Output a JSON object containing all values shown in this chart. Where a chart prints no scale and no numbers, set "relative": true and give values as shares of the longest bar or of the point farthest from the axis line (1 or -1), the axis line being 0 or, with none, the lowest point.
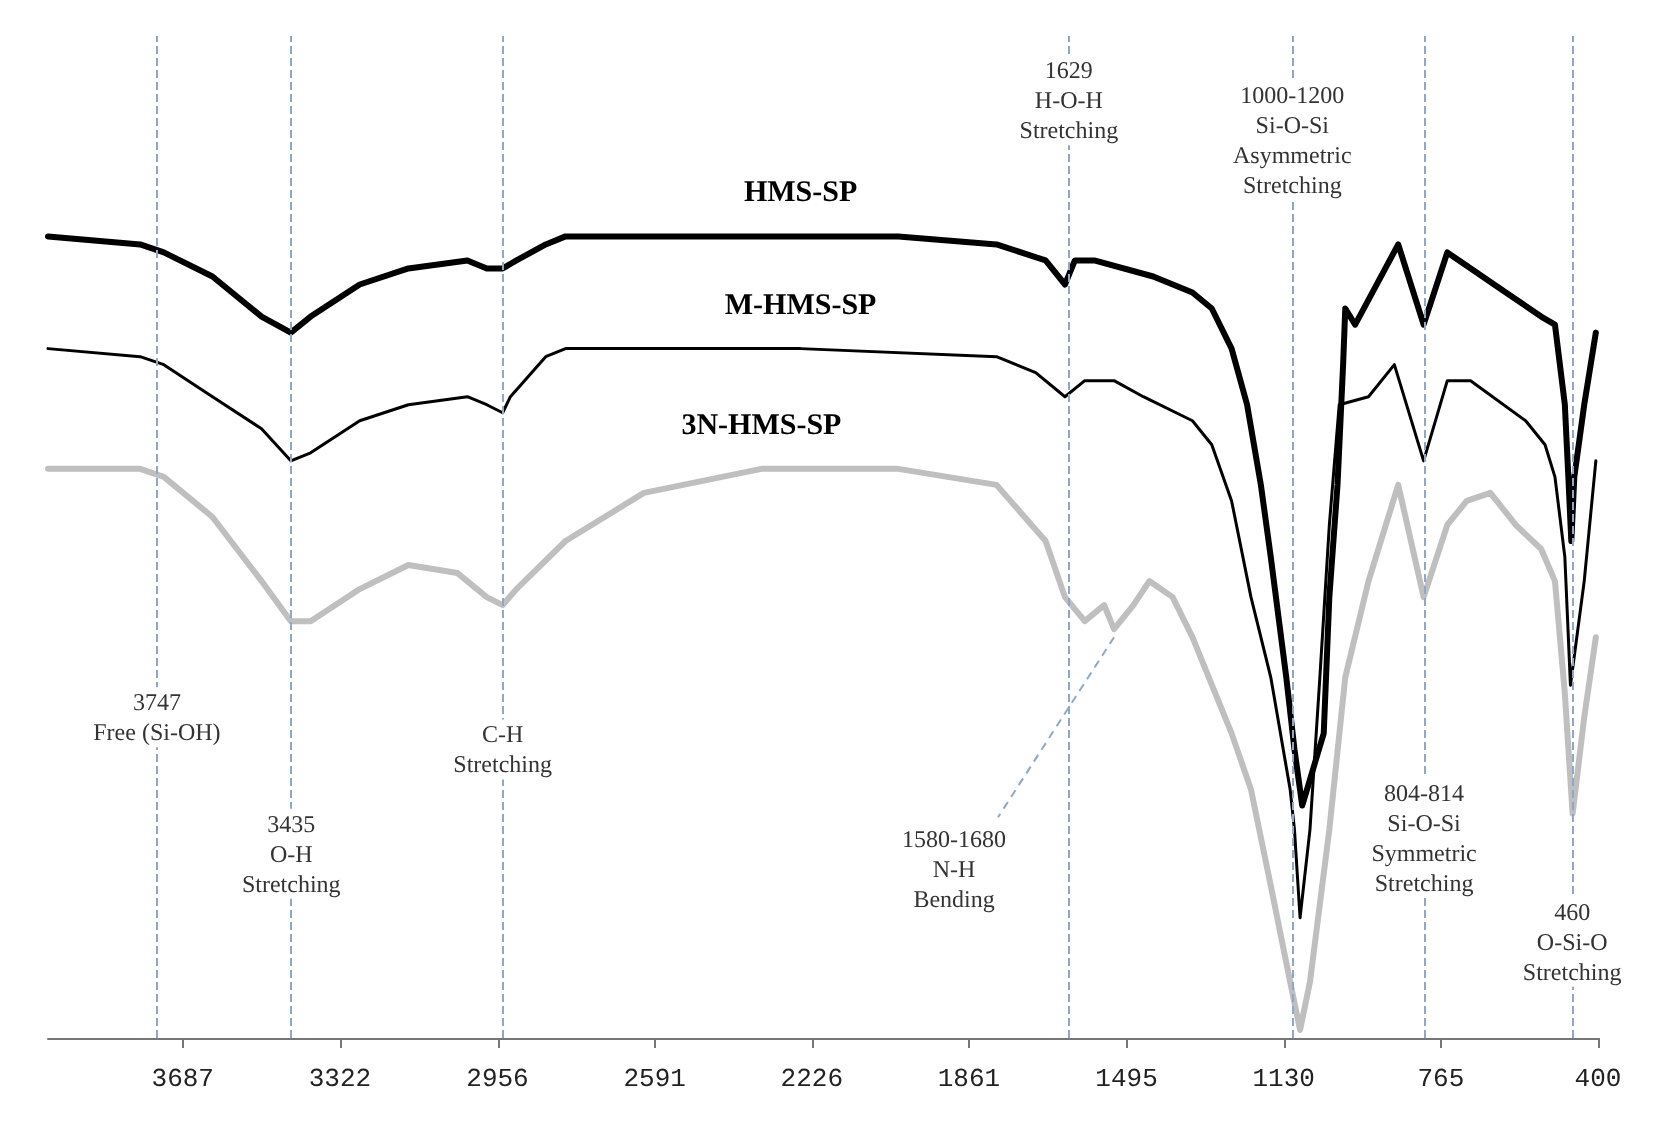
{
  "chart_data": {
    "type": "line",
    "relative": true,
    "xlim": [
      4000,
      400
    ],
    "xticks": [
      3687,
      3322,
      2956,
      2591,
      2226,
      1861,
      1495,
      1130,
      765,
      400
    ],
    "tick_labels": "x",
    "grid": false,
    "legend": false,
    "marker": "none",
    "line_style": "solid",
    "series": [
      {
        "name": "HMS-SP",
        "color": "#000000",
        "x": [
          4000,
          3786,
          3731,
          3618,
          3504,
          3436,
          3390,
          3276,
          3163,
          3026,
          2981,
          2944,
          2912,
          2844,
          2798,
          2252,
          2025,
          1797,
          1683,
          1638,
          1615,
          1570,
          1433,
          1342,
          1297,
          1251,
          1215,
          1183,
          1160,
          1124,
          1105,
          1087,
          1037,
          1024,
          1005,
          992,
          987,
          964,
          864,
          805,
          750,
          614,
          532,
          500,
          477,
          468,
          462,
          455,
          432,
          405
        ],
        "values": [
          1.0,
          0.99,
          0.98,
          0.95,
          0.9,
          0.88,
          0.9,
          0.94,
          0.96,
          0.97,
          0.96,
          0.96,
          0.97,
          0.99,
          1.0,
          1.0,
          1.0,
          0.99,
          0.97,
          0.94,
          0.97,
          0.97,
          0.95,
          0.93,
          0.91,
          0.86,
          0.79,
          0.69,
          0.6,
          0.45,
          0.36,
          0.29,
          0.38,
          0.55,
          0.69,
          0.84,
          0.91,
          0.89,
          0.99,
          0.89,
          0.98,
          0.93,
          0.9,
          0.89,
          0.79,
          0.69,
          0.62,
          0.7,
          0.79,
          0.88
        ]
      },
      {
        "name": "M-HMS-SP",
        "color": "#000000",
        "x": [
          4000,
          3786,
          3731,
          3618,
          3504,
          3436,
          3390,
          3276,
          3163,
          3026,
          2981,
          2944,
          2926,
          2844,
          2798,
          2252,
          1797,
          1706,
          1638,
          1592,
          1524,
          1456,
          1342,
          1297,
          1251,
          1206,
          1160,
          1115,
          1105,
          1092,
          1069,
          1046,
          1024,
          1001,
          933,
          873,
          805,
          750,
          696,
          568,
          523,
          500,
          477,
          464,
          432,
          405
        ],
        "values": [
          0.86,
          0.85,
          0.84,
          0.8,
          0.76,
          0.72,
          0.73,
          0.77,
          0.79,
          0.8,
          0.79,
          0.78,
          0.8,
          0.85,
          0.86,
          0.86,
          0.85,
          0.83,
          0.8,
          0.82,
          0.82,
          0.8,
          0.77,
          0.74,
          0.67,
          0.55,
          0.45,
          0.31,
          0.26,
          0.15,
          0.26,
          0.45,
          0.64,
          0.79,
          0.8,
          0.84,
          0.72,
          0.82,
          0.82,
          0.77,
          0.74,
          0.7,
          0.6,
          0.44,
          0.57,
          0.72
        ]
      },
      {
        "name": "3N-HMS-SP",
        "color": "#bfbfbf",
        "x": [
          4000,
          3786,
          3731,
          3618,
          3504,
          3436,
          3390,
          3276,
          3163,
          3049,
          2981,
          2944,
          2912,
          2798,
          2616,
          2343,
          2161,
          2025,
          1797,
          1683,
          1638,
          1592,
          1547,
          1524,
          1479,
          1442,
          1388,
          1342,
          1251,
          1206,
          1160,
          1115,
          1092,
          1069,
          1024,
          987,
          933,
          864,
          805,
          750,
          705,
          650,
          591,
          532,
          500,
          477,
          459,
          432,
          405
        ],
        "values": [
          0.71,
          0.71,
          0.7,
          0.65,
          0.57,
          0.52,
          0.52,
          0.56,
          0.59,
          0.58,
          0.55,
          0.54,
          0.56,
          0.62,
          0.68,
          0.71,
          0.71,
          0.71,
          0.69,
          0.62,
          0.55,
          0.52,
          0.54,
          0.51,
          0.54,
          0.57,
          0.55,
          0.5,
          0.38,
          0.31,
          0.19,
          0.07,
          0.01,
          0.07,
          0.26,
          0.45,
          0.57,
          0.69,
          0.55,
          0.64,
          0.67,
          0.68,
          0.64,
          0.61,
          0.57,
          0.43,
          0.28,
          0.4,
          0.5
        ]
      }
    ],
    "ref_lines": [
      {
        "axis": "x",
        "value": 3747,
        "color": "#8fa8c8",
        "line_style": "dashed"
      },
      {
        "axis": "x",
        "value": 3435,
        "color": "#8fa8c8",
        "line_style": "dashed"
      },
      {
        "axis": "x",
        "value": 2944,
        "color": "#8fa8c8",
        "line_style": "dashed"
      },
      {
        "axis": "x",
        "value": 1629,
        "color": "#8fa8c8",
        "line_style": "dashed"
      },
      {
        "axis": "x",
        "value": 1110,
        "color": "#8fa8c8",
        "line_style": "dashed"
      },
      {
        "axis": "x",
        "value": 804,
        "color": "#8fa8c8",
        "line_style": "dashed"
      },
      {
        "axis": "x",
        "value": 460,
        "color": "#8fa8c8",
        "line_style": "dashed"
      }
    ],
    "annotations": [
      {
        "text": "3747\nFree (Si-OH)",
        "x": 3747,
        "y": 0.4
      },
      {
        "text": "3435\nO-H\nStretching",
        "x": 3435,
        "y": 0.23
      },
      {
        "text": "C-H\nStretching",
        "x": 2944,
        "y": 0.36
      },
      {
        "text": "1629\nH-O-H\nStretching",
        "x": 1629,
        "y": 1.17
      },
      {
        "text": "1000-1200\nSi-O-Si\nAsymmetric\nStretching",
        "x": 1110,
        "y": 1.12
      },
      {
        "text": "1580-1680\nN-H\nBending",
        "x": 1524,
        "y": 0.51
      },
      {
        "text": "804-814\nSi-O-Si\nSymmetric\nStretching",
        "x": 804,
        "y": 0.25
      },
      {
        "text": "460\nO-Si-O\nStretching",
        "x": 460,
        "y": 0.12
      }
    ]
  }
}
